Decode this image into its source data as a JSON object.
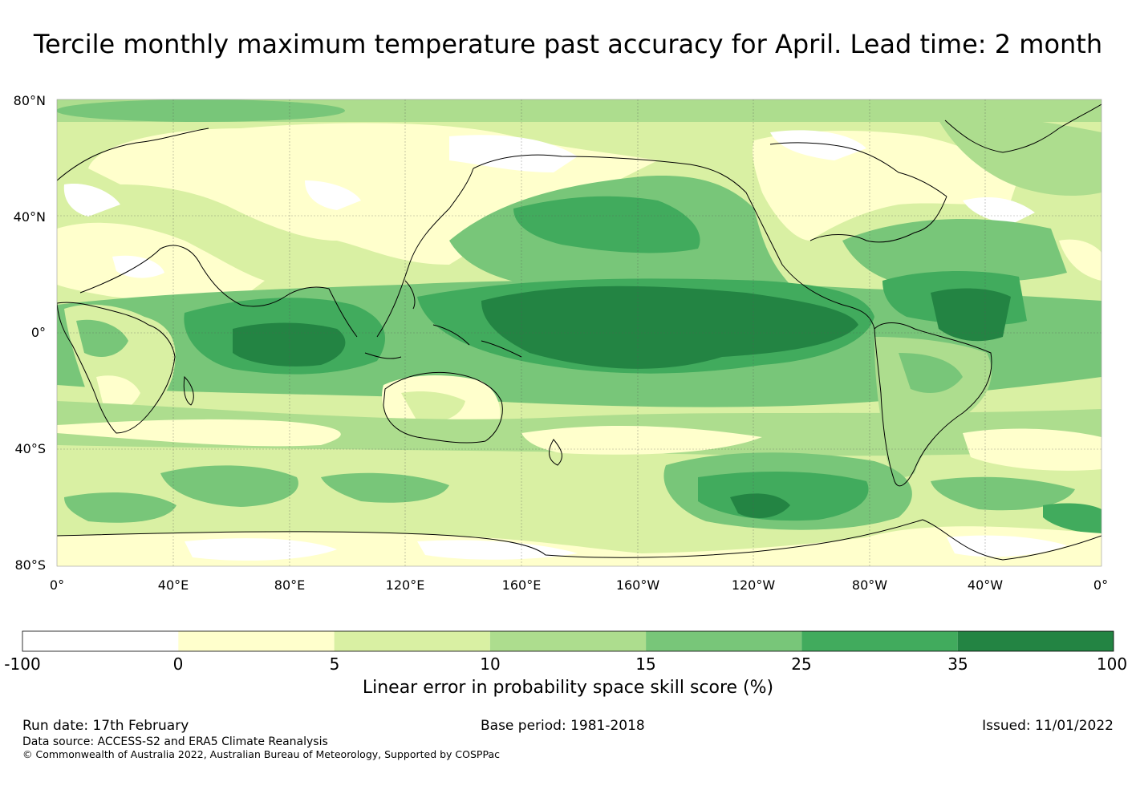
{
  "title": "Tercile monthly maximum temperature past accuracy for April. Lead time: 2 month",
  "map": {
    "lat_labels": [
      "80°N",
      "40°N",
      "0°",
      "40°S",
      "80°S"
    ],
    "lon_labels": [
      "0°",
      "40°E",
      "80°E",
      "120°E",
      "160°E",
      "160°W",
      "120°W",
      "80°W",
      "40°W",
      "0°"
    ],
    "lat_range": [
      -80,
      80
    ],
    "lon_range": [
      0,
      360
    ],
    "gridlines": true
  },
  "colorbar": {
    "ticks": [
      "-100",
      "0",
      "5",
      "10",
      "15",
      "25",
      "35",
      "100"
    ],
    "colors": [
      "#ffffff",
      "#ffffcc",
      "#d9f0a3",
      "#addd8e",
      "#78c679",
      "#41ab5d",
      "#238443"
    ],
    "label": "Linear error in probability space skill score (%)"
  },
  "footer": {
    "run_date": "Run date: 17th February",
    "base_period": "Base period: 1981-2018",
    "issued": "Issued: 11/01/2022",
    "data_source": "Data source: ACCESS-S2 and ERA5 Climate Reanalysis",
    "copyright": "© Commonwealth of Australia 2022, Australian Bureau of Meteorology, Supported by COSPPac"
  }
}
